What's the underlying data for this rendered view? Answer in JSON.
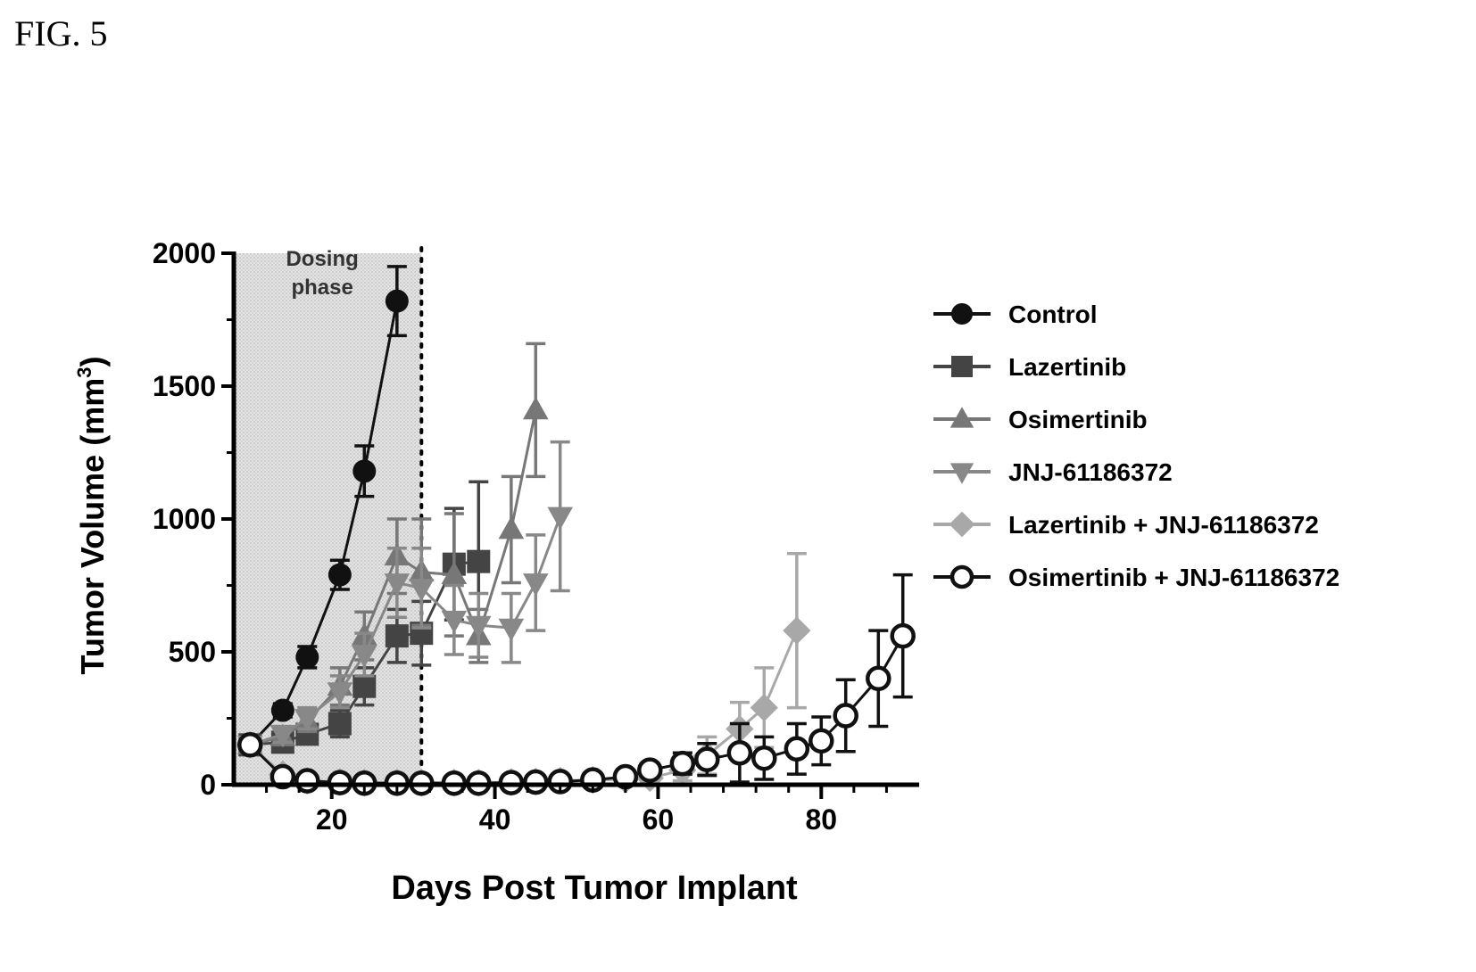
{
  "figure_label": "FIG. 5",
  "chart_data": {
    "type": "line",
    "title": "",
    "xlabel": "Days Post Tumor Implant",
    "ylabel_main": "Tumor Volume (mm",
    "ylabel_sup": "3",
    "ylabel_end": ")",
    "xlim": [
      8,
      92
    ],
    "ylim": [
      0,
      2000
    ],
    "xticks": [
      20,
      40,
      60,
      80
    ],
    "yticks": [
      0,
      500,
      1000,
      1500,
      2000
    ],
    "legend_position": "right",
    "shaded_region": {
      "x": [
        8,
        31
      ],
      "label_line1": "Dosing",
      "label_line2": "phase"
    },
    "series": [
      {
        "name": "Control",
        "color": "#111111",
        "marker": "circle",
        "points": [
          {
            "x": 10,
            "y": 150,
            "err": 20
          },
          {
            "x": 14,
            "y": 280,
            "err": 25
          },
          {
            "x": 17,
            "y": 480,
            "err": 40
          },
          {
            "x": 21,
            "y": 790,
            "err": 55
          },
          {
            "x": 24,
            "y": 1180,
            "err": 95
          },
          {
            "x": 28,
            "y": 1820,
            "err": 130
          }
        ]
      },
      {
        "name": "Lazertinib",
        "color": "#444444",
        "marker": "square",
        "points": [
          {
            "x": 10,
            "y": 150,
            "err": 15
          },
          {
            "x": 14,
            "y": 160,
            "err": 30
          },
          {
            "x": 17,
            "y": 190,
            "err": 35
          },
          {
            "x": 21,
            "y": 230,
            "err": 50
          },
          {
            "x": 24,
            "y": 370,
            "err": 70
          },
          {
            "x": 28,
            "y": 560,
            "err": 100
          },
          {
            "x": 31,
            "y": 570,
            "err": 120
          },
          {
            "x": 35,
            "y": 830,
            "err": 210
          },
          {
            "x": 38,
            "y": 840,
            "err": 300
          }
        ]
      },
      {
        "name": "Osimertinib",
        "color": "#777777",
        "marker": "triangle-up",
        "points": [
          {
            "x": 10,
            "y": 150,
            "err": 15
          },
          {
            "x": 14,
            "y": 180,
            "err": 30
          },
          {
            "x": 17,
            "y": 240,
            "err": 40
          },
          {
            "x": 21,
            "y": 370,
            "err": 70
          },
          {
            "x": 24,
            "y": 560,
            "err": 90
          },
          {
            "x": 28,
            "y": 860,
            "err": 140
          },
          {
            "x": 31,
            "y": 800,
            "err": 200
          },
          {
            "x": 35,
            "y": 790,
            "err": 230
          },
          {
            "x": 38,
            "y": 560,
            "err": 100
          },
          {
            "x": 42,
            "y": 960,
            "err": 200
          },
          {
            "x": 45,
            "y": 1410,
            "err": 250
          }
        ]
      },
      {
        "name": "JNJ-61186372",
        "color": "#888888",
        "marker": "triangle-down",
        "points": [
          {
            "x": 10,
            "y": 150,
            "err": 15
          },
          {
            "x": 14,
            "y": 190,
            "err": 30
          },
          {
            "x": 17,
            "y": 250,
            "err": 40
          },
          {
            "x": 21,
            "y": 350,
            "err": 60
          },
          {
            "x": 24,
            "y": 490,
            "err": 80
          },
          {
            "x": 28,
            "y": 760,
            "err": 130
          },
          {
            "x": 31,
            "y": 740,
            "err": 150
          },
          {
            "x": 35,
            "y": 620,
            "err": 130
          },
          {
            "x": 38,
            "y": 600,
            "err": 120
          },
          {
            "x": 42,
            "y": 590,
            "err": 130
          },
          {
            "x": 45,
            "y": 760,
            "err": 180
          },
          {
            "x": 48,
            "y": 1010,
            "err": 280
          }
        ]
      },
      {
        "name": "Lazertinib + JNJ-61186372",
        "color": "#a8a8a8",
        "marker": "diamond",
        "points": [
          {
            "x": 10,
            "y": 150,
            "err": 10
          },
          {
            "x": 14,
            "y": 40,
            "err": 8
          },
          {
            "x": 17,
            "y": 15,
            "err": 5
          },
          {
            "x": 21,
            "y": 10,
            "err": 4
          },
          {
            "x": 24,
            "y": 8,
            "err": 4
          },
          {
            "x": 28,
            "y": 8,
            "err": 4
          },
          {
            "x": 31,
            "y": 8,
            "err": 4
          },
          {
            "x": 35,
            "y": 8,
            "err": 4
          },
          {
            "x": 38,
            "y": 8,
            "err": 4
          },
          {
            "x": 42,
            "y": 10,
            "err": 4
          },
          {
            "x": 45,
            "y": 12,
            "err": 5
          },
          {
            "x": 48,
            "y": 15,
            "err": 6
          },
          {
            "x": 52,
            "y": 18,
            "err": 8
          },
          {
            "x": 56,
            "y": 20,
            "err": 10
          },
          {
            "x": 59,
            "y": 25,
            "err": 15
          },
          {
            "x": 63,
            "y": 55,
            "err": 40
          },
          {
            "x": 66,
            "y": 110,
            "err": 70
          },
          {
            "x": 70,
            "y": 210,
            "err": 100
          },
          {
            "x": 73,
            "y": 290,
            "err": 150
          },
          {
            "x": 77,
            "y": 580,
            "err": 290
          }
        ]
      },
      {
        "name": "Osimertinib + JNJ-61186372",
        "color": "#111111",
        "marker": "circle-open",
        "points": [
          {
            "x": 10,
            "y": 150,
            "err": 10
          },
          {
            "x": 14,
            "y": 30,
            "err": 8
          },
          {
            "x": 17,
            "y": 15,
            "err": 5
          },
          {
            "x": 21,
            "y": 8,
            "err": 4
          },
          {
            "x": 24,
            "y": 6,
            "err": 3
          },
          {
            "x": 28,
            "y": 6,
            "err": 3
          },
          {
            "x": 31,
            "y": 6,
            "err": 3
          },
          {
            "x": 35,
            "y": 6,
            "err": 3
          },
          {
            "x": 38,
            "y": 6,
            "err": 3
          },
          {
            "x": 42,
            "y": 8,
            "err": 3
          },
          {
            "x": 45,
            "y": 10,
            "err": 4
          },
          {
            "x": 48,
            "y": 12,
            "err": 5
          },
          {
            "x": 52,
            "y": 18,
            "err": 6
          },
          {
            "x": 56,
            "y": 30,
            "err": 10
          },
          {
            "x": 59,
            "y": 55,
            "err": 25
          },
          {
            "x": 63,
            "y": 80,
            "err": 40
          },
          {
            "x": 66,
            "y": 95,
            "err": 60
          },
          {
            "x": 70,
            "y": 120,
            "err": 110
          },
          {
            "x": 73,
            "y": 100,
            "err": 80
          },
          {
            "x": 77,
            "y": 135,
            "err": 95
          },
          {
            "x": 80,
            "y": 165,
            "err": 90
          },
          {
            "x": 83,
            "y": 260,
            "err": 135
          },
          {
            "x": 87,
            "y": 400,
            "err": 180
          },
          {
            "x": 90,
            "y": 560,
            "err": 230
          }
        ]
      }
    ]
  }
}
